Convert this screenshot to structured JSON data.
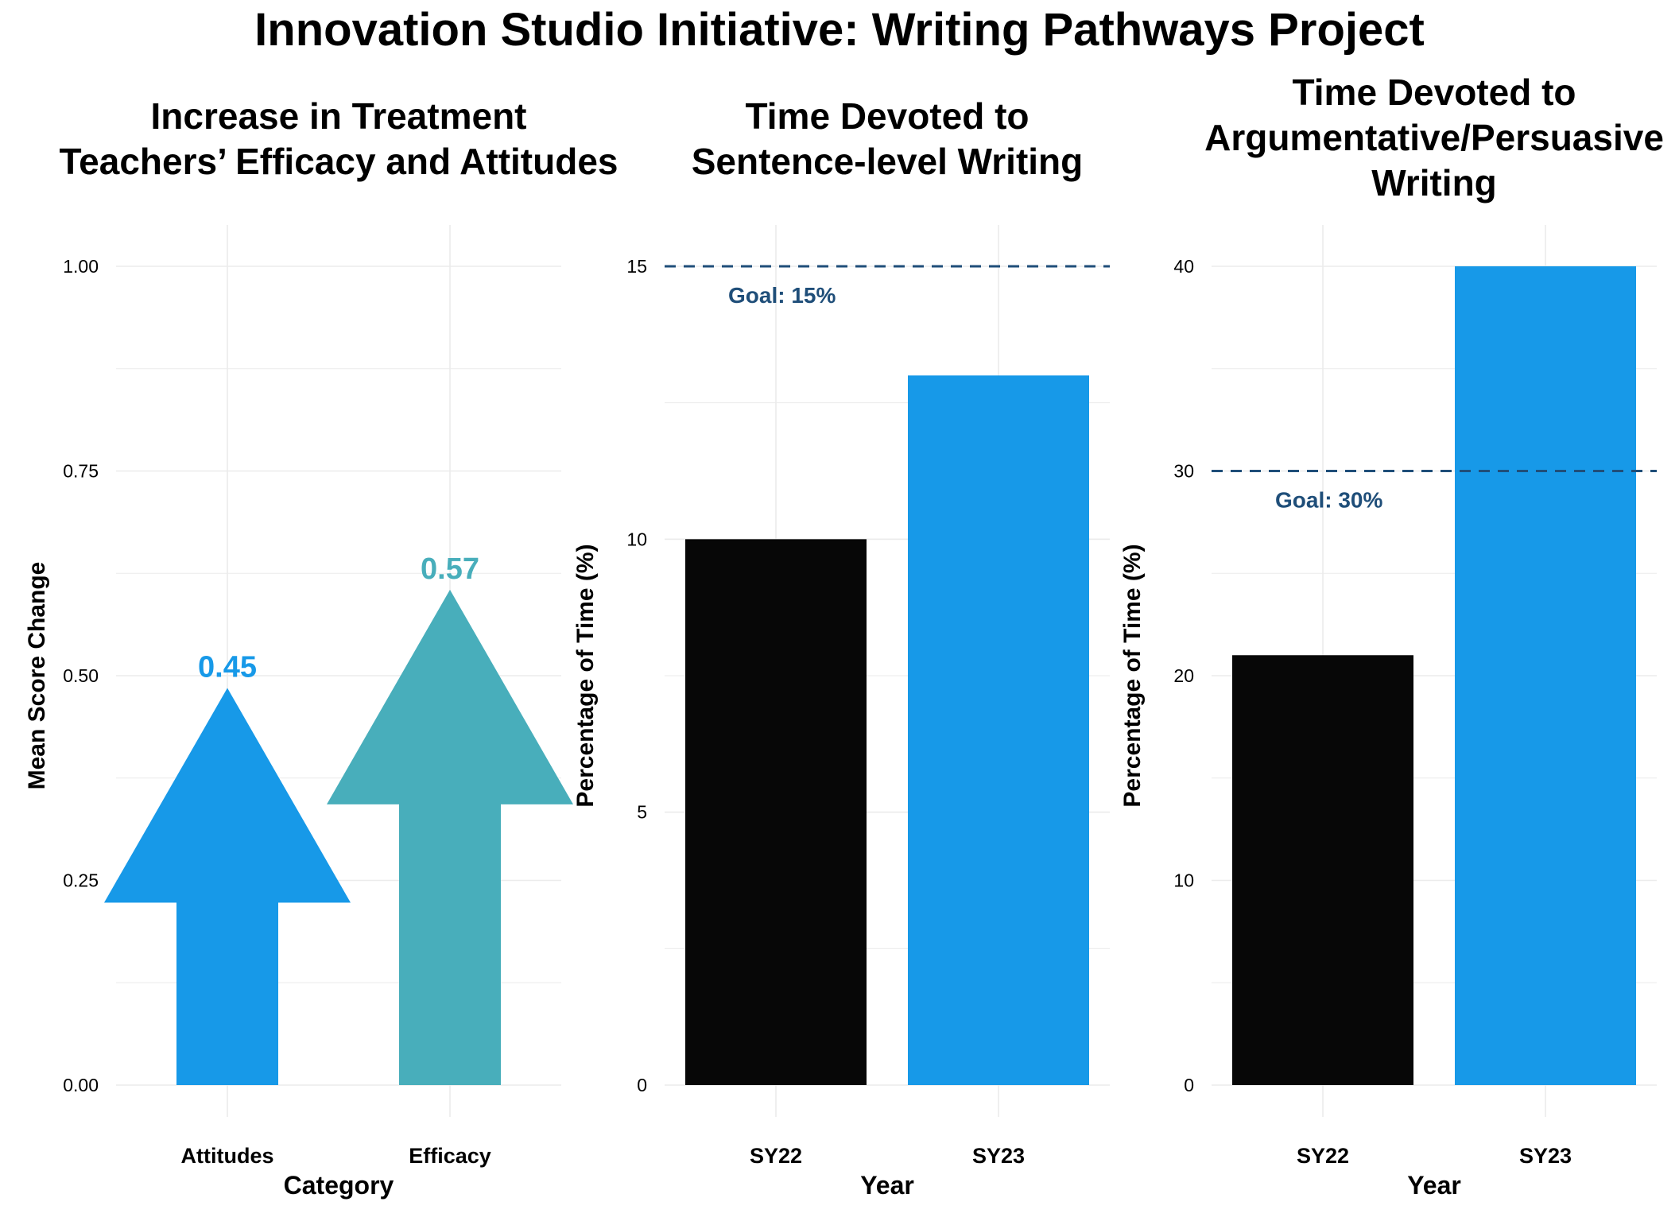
{
  "main_title": "Innovation Studio Initiative: Writing Pathways Project",
  "colors": {
    "blue": "#1799E8",
    "teal": "#48AEBB",
    "black": "#070707",
    "goal": "#1F4E79",
    "grid": "#EBEBEB"
  },
  "chart_data": [
    {
      "type": "bar",
      "mark": "arrow",
      "title": "Increase in Treatment\nTeachers’ Efficacy and Attitudes",
      "xlabel": "Category",
      "ylabel": "Mean Score Change",
      "ylim": [
        0,
        1.0
      ],
      "yticks": [
        "0.00",
        "0.25",
        "0.50",
        "0.75",
        "1.00"
      ],
      "categories": [
        "Attitudes",
        "Efficacy"
      ],
      "values": [
        0.45,
        0.57
      ],
      "value_labels": [
        "0.45",
        "0.57"
      ],
      "bar_colors": [
        "#1799E8",
        "#48AEBB"
      ],
      "grid": true
    },
    {
      "type": "bar",
      "title": "Time Devoted to\nSentence-level Writing",
      "xlabel": "Year",
      "ylabel": "Percentage of Time (%)",
      "ylim": [
        0,
        15
      ],
      "yticks": [
        "0",
        "5",
        "10",
        "15"
      ],
      "categories": [
        "SY22",
        "SY23"
      ],
      "values": [
        10,
        13
      ],
      "bar_colors": [
        "#070707",
        "#1799E8"
      ],
      "goal": {
        "value": 15,
        "label": "Goal: 15%"
      },
      "grid": true
    },
    {
      "type": "bar",
      "title": "Time Devoted to\nArgumentative/Persuasive\nWriting",
      "xlabel": "Year",
      "ylabel": "Percentage of Time (%)",
      "ylim": [
        0,
        40
      ],
      "yticks": [
        "0",
        "10",
        "20",
        "30",
        "40"
      ],
      "categories": [
        "SY22",
        "SY23"
      ],
      "values": [
        21,
        40
      ],
      "bar_colors": [
        "#070707",
        "#1799E8"
      ],
      "goal": {
        "value": 30,
        "label": "Goal: 30%"
      },
      "grid": true
    }
  ]
}
